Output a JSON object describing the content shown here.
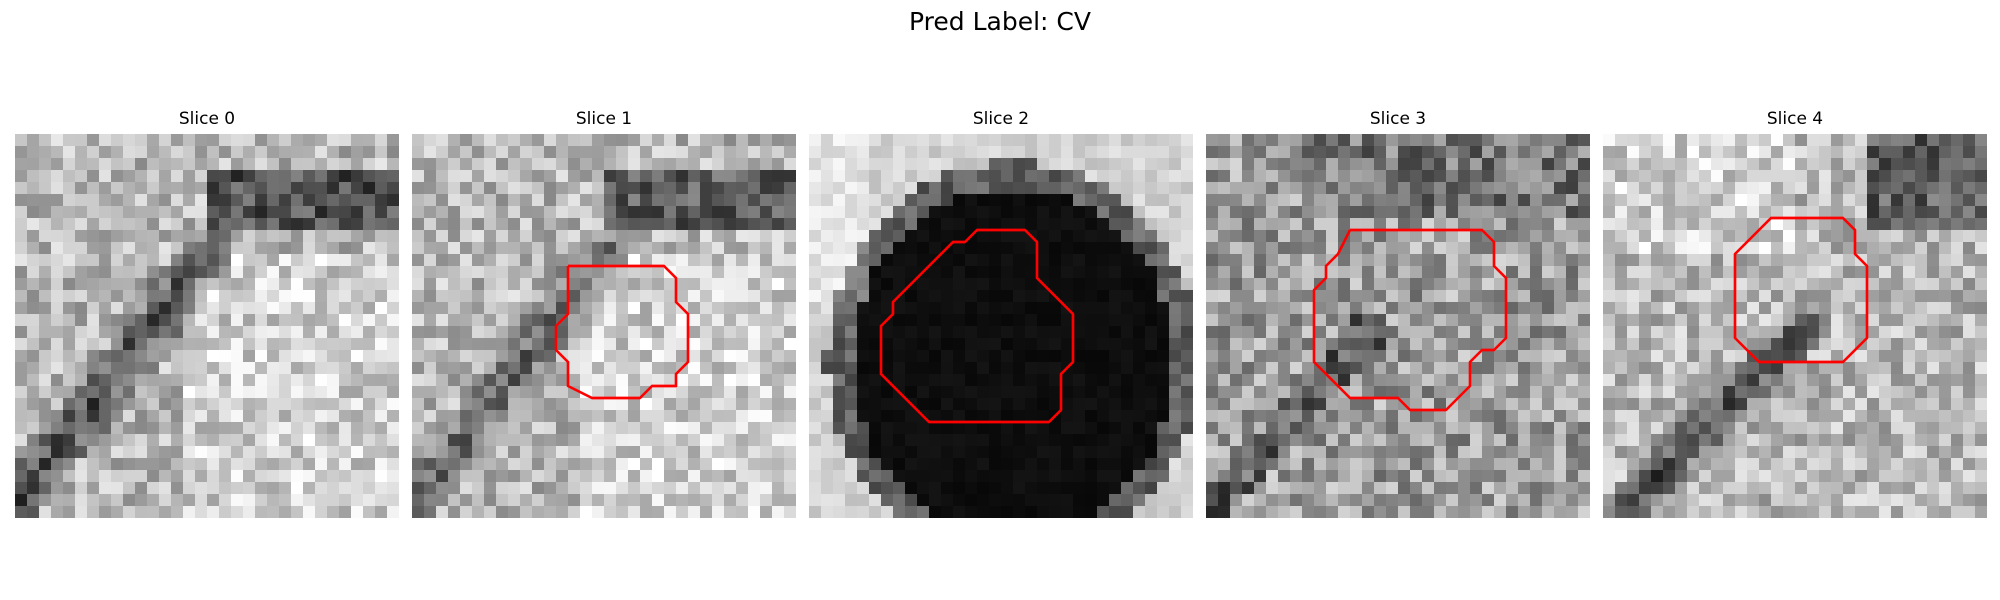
{
  "figure": {
    "suptitle": "Pred Label: CV",
    "contour_color": "#ff0000",
    "grid_size": 32,
    "panels": [
      {
        "title": "Slice 0",
        "pattern": "diagonal-band",
        "contour": []
      },
      {
        "title": "Slice 1",
        "pattern": "diagonal-band-faint",
        "contour": [
          [
            13,
            11
          ],
          [
            21,
            11
          ],
          [
            22,
            12
          ],
          [
            22,
            14
          ],
          [
            23,
            15
          ],
          [
            23,
            19
          ],
          [
            22,
            20
          ],
          [
            22,
            21
          ],
          [
            20,
            21
          ],
          [
            19,
            22
          ],
          [
            15,
            22
          ],
          [
            13,
            21
          ],
          [
            13,
            19
          ],
          [
            12,
            18
          ],
          [
            12,
            16
          ],
          [
            13,
            15
          ],
          [
            13,
            11
          ]
        ]
      },
      {
        "title": "Slice 2",
        "pattern": "dark-blob",
        "contour": [
          [
            15,
            8
          ],
          [
            18,
            8
          ],
          [
            19,
            9
          ],
          [
            19,
            12
          ],
          [
            20,
            13
          ],
          [
            21,
            14
          ],
          [
            22,
            15
          ],
          [
            22,
            19
          ],
          [
            21,
            20
          ],
          [
            21,
            23
          ],
          [
            20,
            24
          ],
          [
            10,
            24
          ],
          [
            8,
            22
          ],
          [
            6,
            20
          ],
          [
            6,
            16
          ],
          [
            7,
            15
          ],
          [
            7,
            14
          ],
          [
            8,
            13
          ],
          [
            10,
            11
          ],
          [
            12,
            9
          ],
          [
            13,
            9
          ],
          [
            14,
            8
          ],
          [
            15,
            8
          ]
        ]
      },
      {
        "title": "Slice 3",
        "pattern": "noise-mid",
        "contour": [
          [
            12,
            8
          ],
          [
            23,
            8
          ],
          [
            24,
            9
          ],
          [
            24,
            11
          ],
          [
            25,
            12
          ],
          [
            25,
            17
          ],
          [
            24,
            18
          ],
          [
            23,
            18
          ],
          [
            22,
            19
          ],
          [
            22,
            21
          ],
          [
            21,
            22
          ],
          [
            20,
            23
          ],
          [
            17,
            23
          ],
          [
            16,
            22
          ],
          [
            12,
            22
          ],
          [
            11,
            21
          ],
          [
            10,
            20
          ],
          [
            9,
            19
          ],
          [
            9,
            13
          ],
          [
            10,
            12
          ],
          [
            10,
            11
          ],
          [
            11,
            10
          ],
          [
            12,
            8
          ]
        ]
      },
      {
        "title": "Slice 4",
        "pattern": "diagonal-band-low",
        "contour": [
          [
            13,
            8
          ],
          [
            14,
            7
          ],
          [
            20,
            7
          ],
          [
            21,
            8
          ],
          [
            21,
            10
          ],
          [
            22,
            11
          ],
          [
            22,
            17
          ],
          [
            21,
            18
          ],
          [
            20,
            19
          ],
          [
            13,
            19
          ],
          [
            12,
            18
          ],
          [
            11,
            17
          ],
          [
            11,
            10
          ],
          [
            12,
            9
          ],
          [
            13,
            8
          ]
        ]
      }
    ]
  }
}
